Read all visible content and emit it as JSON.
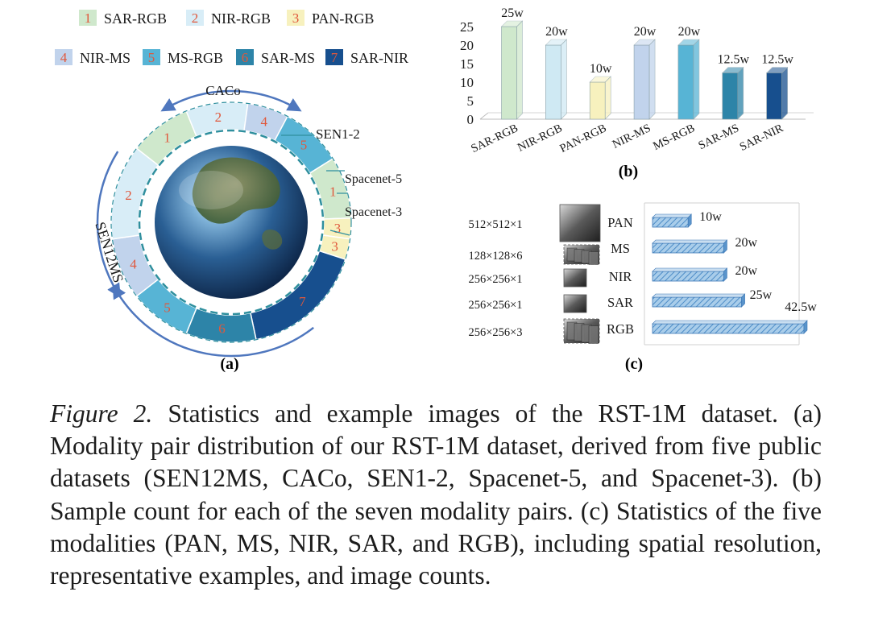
{
  "legend": {
    "items": [
      {
        "num": "1",
        "label": "SAR-RGB",
        "color": "#cfe8cc"
      },
      {
        "num": "2",
        "label": "NIR-RGB",
        "color": "#d8edf7"
      },
      {
        "num": "3",
        "label": "PAN-RGB",
        "color": "#f7f1be"
      },
      {
        "num": "4",
        "label": "NIR-MS",
        "color": "#c1d3ec"
      },
      {
        "num": "5",
        "label": "MS-RGB",
        "color": "#57b4d5"
      },
      {
        "num": "6",
        "label": "SAR-MS",
        "color": "#2d84a8"
      },
      {
        "num": "7",
        "label": "SAR-NIR",
        "color": "#174f8e"
      }
    ]
  },
  "ring": {
    "dataset_labels": [
      "CACo",
      "SEN1-2",
      "Spacenet-5",
      "Spacenet-3",
      "SEN12MS"
    ],
    "segment_numbers": [
      "1",
      "2",
      "4",
      "5",
      "1",
      "3",
      "3",
      "7",
      "6",
      "5",
      "4",
      "2"
    ]
  },
  "panel_labels": {
    "a": "(a)",
    "b": "(b)",
    "c": "(c)"
  },
  "chart_data": [
    {
      "type": "bar",
      "categories": [
        "SAR-RGB",
        "NIR-RGB",
        "PAN-RGB",
        "NIR-MS",
        "MS-RGB",
        "SAR-MS",
        "SAR-NIR"
      ],
      "values": [
        25,
        20,
        10,
        20,
        20,
        12.5,
        12.5
      ],
      "data_labels": [
        "25w",
        "20w",
        "10w",
        "20w",
        "20w",
        "12.5w",
        "12.5w"
      ],
      "colors": [
        "#cfe8cc",
        "#cfe9f3",
        "#f7f1be",
        "#c1d3ec",
        "#57b4d5",
        "#2d84a8",
        "#174f8e"
      ],
      "yticks": [
        "0",
        "5",
        "10",
        "15",
        "20",
        "25"
      ],
      "ylim": [
        0,
        25
      ],
      "title": "",
      "xlabel": "",
      "ylabel": ""
    },
    {
      "type": "bar",
      "orientation": "horizontal",
      "categories": [
        "PAN",
        "MS",
        "NIR",
        "SAR",
        "RGB"
      ],
      "values": [
        10,
        20,
        20,
        25,
        42.5
      ],
      "data_labels": [
        "10w",
        "20w",
        "20w",
        "25w",
        "42.5w"
      ],
      "resolutions": [
        "512×512×1",
        "128×128×6",
        "256×256×1",
        "256×256×1",
        "256×256×3"
      ],
      "bar_color": "#7fb4dc",
      "title": "",
      "xlabel": "",
      "ylabel": ""
    }
  ],
  "caption": {
    "label": "Figure 2.",
    "text": "Statistics and example images of the RST-1M dataset. (a) Modality pair distribution of our RST-1M dataset, derived from five public datasets (SEN12MS, CACo, SEN1-2, Spacenet-5, and Spacenet-3). (b) Sample count for each of the seven modality pairs. (c) Statistics of the five modalities (PAN, MS, NIR, SAR, and RGB), including spatial resolution, representative examples, and image counts."
  }
}
